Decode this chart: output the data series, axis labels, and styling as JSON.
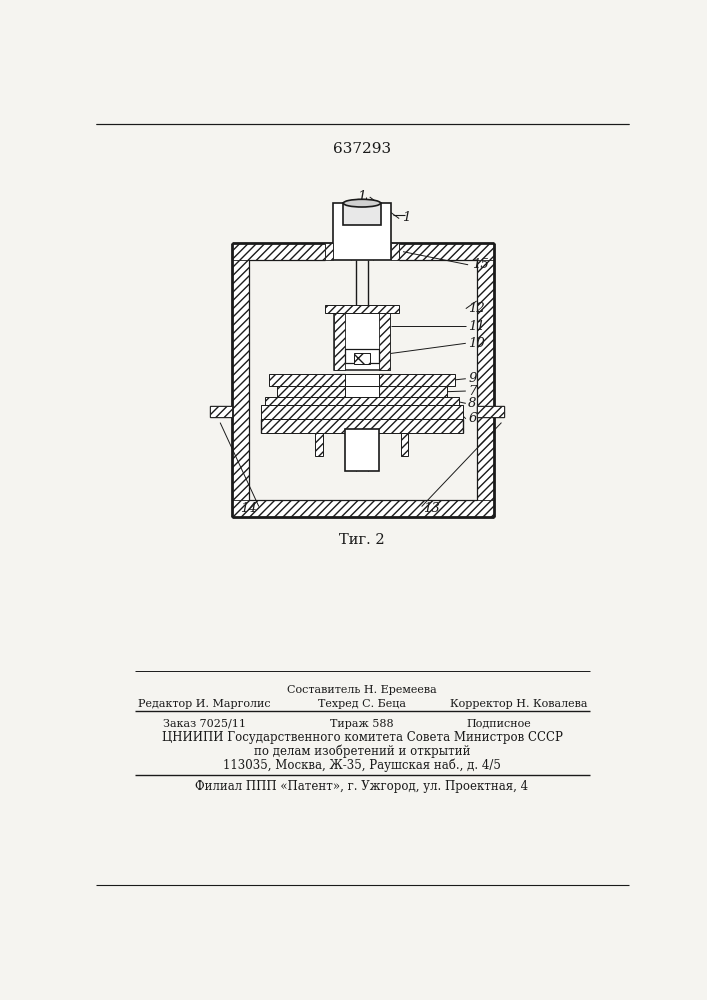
{
  "patent_number": "637293",
  "fig_label": "Τиг. 2",
  "bg_color": "#f5f4f0",
  "line_color": "#1a1a1a",
  "footer": {
    "line1": "Составитель Н. Еремеева",
    "line2_left": "Редактор И. Марголис",
    "line2_mid": "Техред С. Беца",
    "line2_right": "Корректор Н. Ковалева",
    "line3_left": "Заказ 7025/11",
    "line3_mid": "Тираж 588",
    "line3_right": "Подписное",
    "line4": "ЦНИИПИ Государственного комитета Совета Министров СССР",
    "line5": "по делам изобретений и открытий",
    "line6": "113035, Москва, Ж-35, Раушская наб., д. 4/5",
    "line7": "Филиал ППП «Патент», г. Ужгород, ул. Проектная, 4"
  }
}
